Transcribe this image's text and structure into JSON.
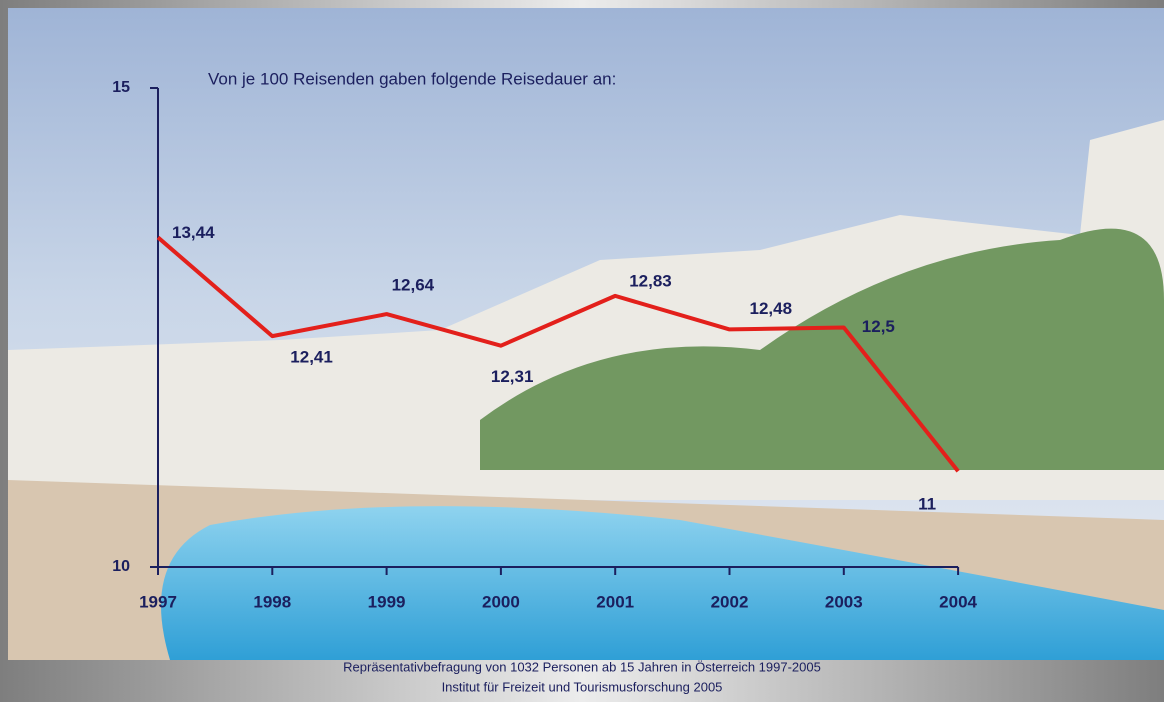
{
  "chart_data": {
    "type": "line",
    "title": "Von je 100 Reisenden gaben folgende Reisedauer an:",
    "categories": [
      "1997",
      "1998",
      "1999",
      "2000",
      "2001",
      "2002",
      "2003",
      "2004"
    ],
    "series": [
      {
        "color": "#e3201b",
        "values": [
          13.44,
          12.41,
          12.64,
          12.31,
          12.83,
          12.48,
          12.5,
          11
        ],
        "value_labels": [
          "13,44",
          "12,41",
          "12,64",
          "12,31",
          "12,83",
          "12,48",
          "12,5",
          "11"
        ]
      }
    ],
    "ylim": [
      10,
      15
    ],
    "yticks": [
      10,
      15
    ],
    "footnotes": [
      "Repräsentativbefragung von 1032 Personen ab 15 Jahren  in Österreich 1997-2005",
      "Institut für Freizeit und Tourismusforschung 2005"
    ]
  }
}
